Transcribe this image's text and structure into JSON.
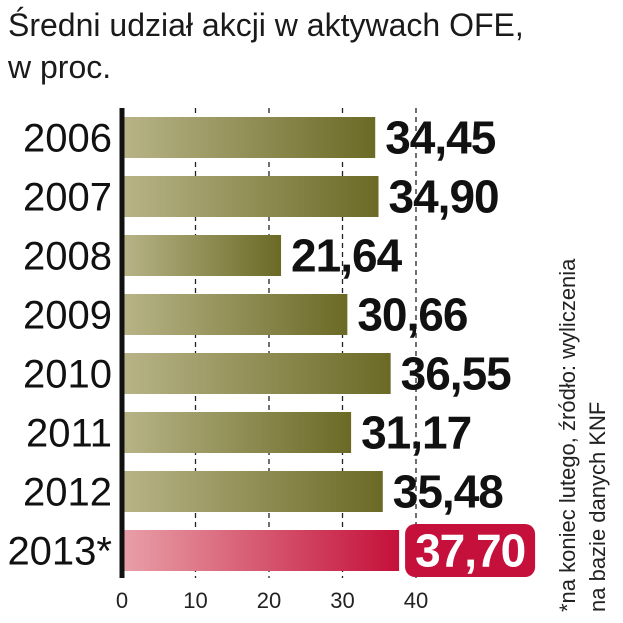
{
  "chart_data": {
    "type": "bar",
    "orientation": "horizontal",
    "title": "Średni udział akcji w aktywach OFE,",
    "subtitle": "w proc.",
    "categories": [
      "2006",
      "2007",
      "2008",
      "2009",
      "2010",
      "2011",
      "2012",
      "2013*"
    ],
    "values": [
      34.45,
      34.9,
      21.64,
      30.66,
      36.55,
      31.17,
      35.48,
      37.7
    ],
    "value_labels": [
      "34,45",
      "34,90",
      "21,64",
      "30,66",
      "36,55",
      "31,17",
      "35,48",
      "37,70"
    ],
    "highlight_index": 7,
    "xlim": [
      0,
      40
    ],
    "xticks": [
      0,
      10,
      20,
      30,
      40
    ],
    "grid": "vertical-dashed",
    "colors": {
      "bar_light": "#b8b488",
      "bar_dark": "#6b6a25",
      "highlight_light": "#e8a0a8",
      "highlight_dark": "#c4103a"
    },
    "note_lines": [
      "*na koniec lutego, źródło: wyliczenia",
      "na bazie danych KNF"
    ]
  }
}
